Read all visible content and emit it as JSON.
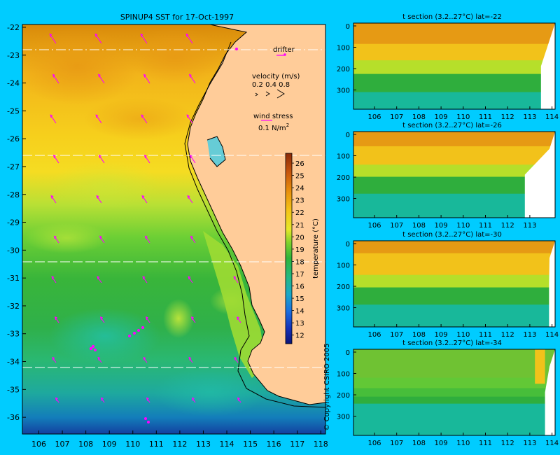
{
  "map": {
    "title": "SPINUP4 SST for 17-Oct-1997",
    "x_ticks": [
      "106",
      "107",
      "108",
      "109",
      "110",
      "111",
      "112",
      "113",
      "114",
      "115",
      "116",
      "117",
      "118"
    ],
    "y_ticks": [
      "-22",
      "-23",
      "-24",
      "-25",
      "-26",
      "-27",
      "-28",
      "-29",
      "-30",
      "-31",
      "-32",
      "-33",
      "-34",
      "-35",
      "-36"
    ],
    "lon_range": [
      105.3,
      118.2
    ],
    "lat_range": [
      -36.6,
      -21.9
    ],
    "section_lats": [
      -22,
      -26,
      -30,
      -34
    ],
    "drifter_label": "drifter",
    "velocity_label": "velocity (m/s)",
    "velocity_values": "0.2 0.4 0.8",
    "wind_label": "wind stress",
    "wind_value": "0.1 N/m",
    "wind_exp": "2",
    "colorbar_label": "temperature (°C)",
    "colorbar_ticks": [
      "26",
      "25",
      "24",
      "23",
      "22",
      "21",
      "20",
      "19",
      "18",
      "17",
      "16",
      "15",
      "14",
      "13",
      "12"
    ],
    "colorbar_range": [
      11.3,
      26.8
    ],
    "copyright": "© Copyright CSIRO 2005"
  },
  "sections": [
    {
      "title": "t section (3.2..27°C) lat=-22",
      "x_ticks": [
        "106",
        "107",
        "108",
        "109",
        "110",
        "111",
        "112",
        "113",
        "114"
      ],
      "y_ticks": [
        "0",
        "100",
        "200",
        "300"
      ]
    },
    {
      "title": "t section (3.2..27°C) lat=-26",
      "x_ticks": [
        "106",
        "107",
        "108",
        "109",
        "110",
        "111",
        "112",
        "113"
      ],
      "y_ticks": [
        "0",
        "100",
        "200",
        "300"
      ]
    },
    {
      "title": "t section (3.2..27°C) lat=-30",
      "x_ticks": [
        "106",
        "107",
        "108",
        "109",
        "110",
        "111",
        "112",
        "113",
        "114"
      ],
      "y_ticks": [
        "0",
        "100",
        "200",
        "300"
      ]
    },
    {
      "title": "t section (3.2..27°C) lat=-34",
      "x_ticks": [
        "106",
        "107",
        "108",
        "109",
        "110",
        "111",
        "112",
        "113",
        "114"
      ],
      "y_ticks": [
        "0",
        "100",
        "200",
        "300"
      ]
    }
  ],
  "colors": {
    "background": "#00ccff",
    "land": "#ffcc99",
    "vectors": "#ff00ff"
  }
}
